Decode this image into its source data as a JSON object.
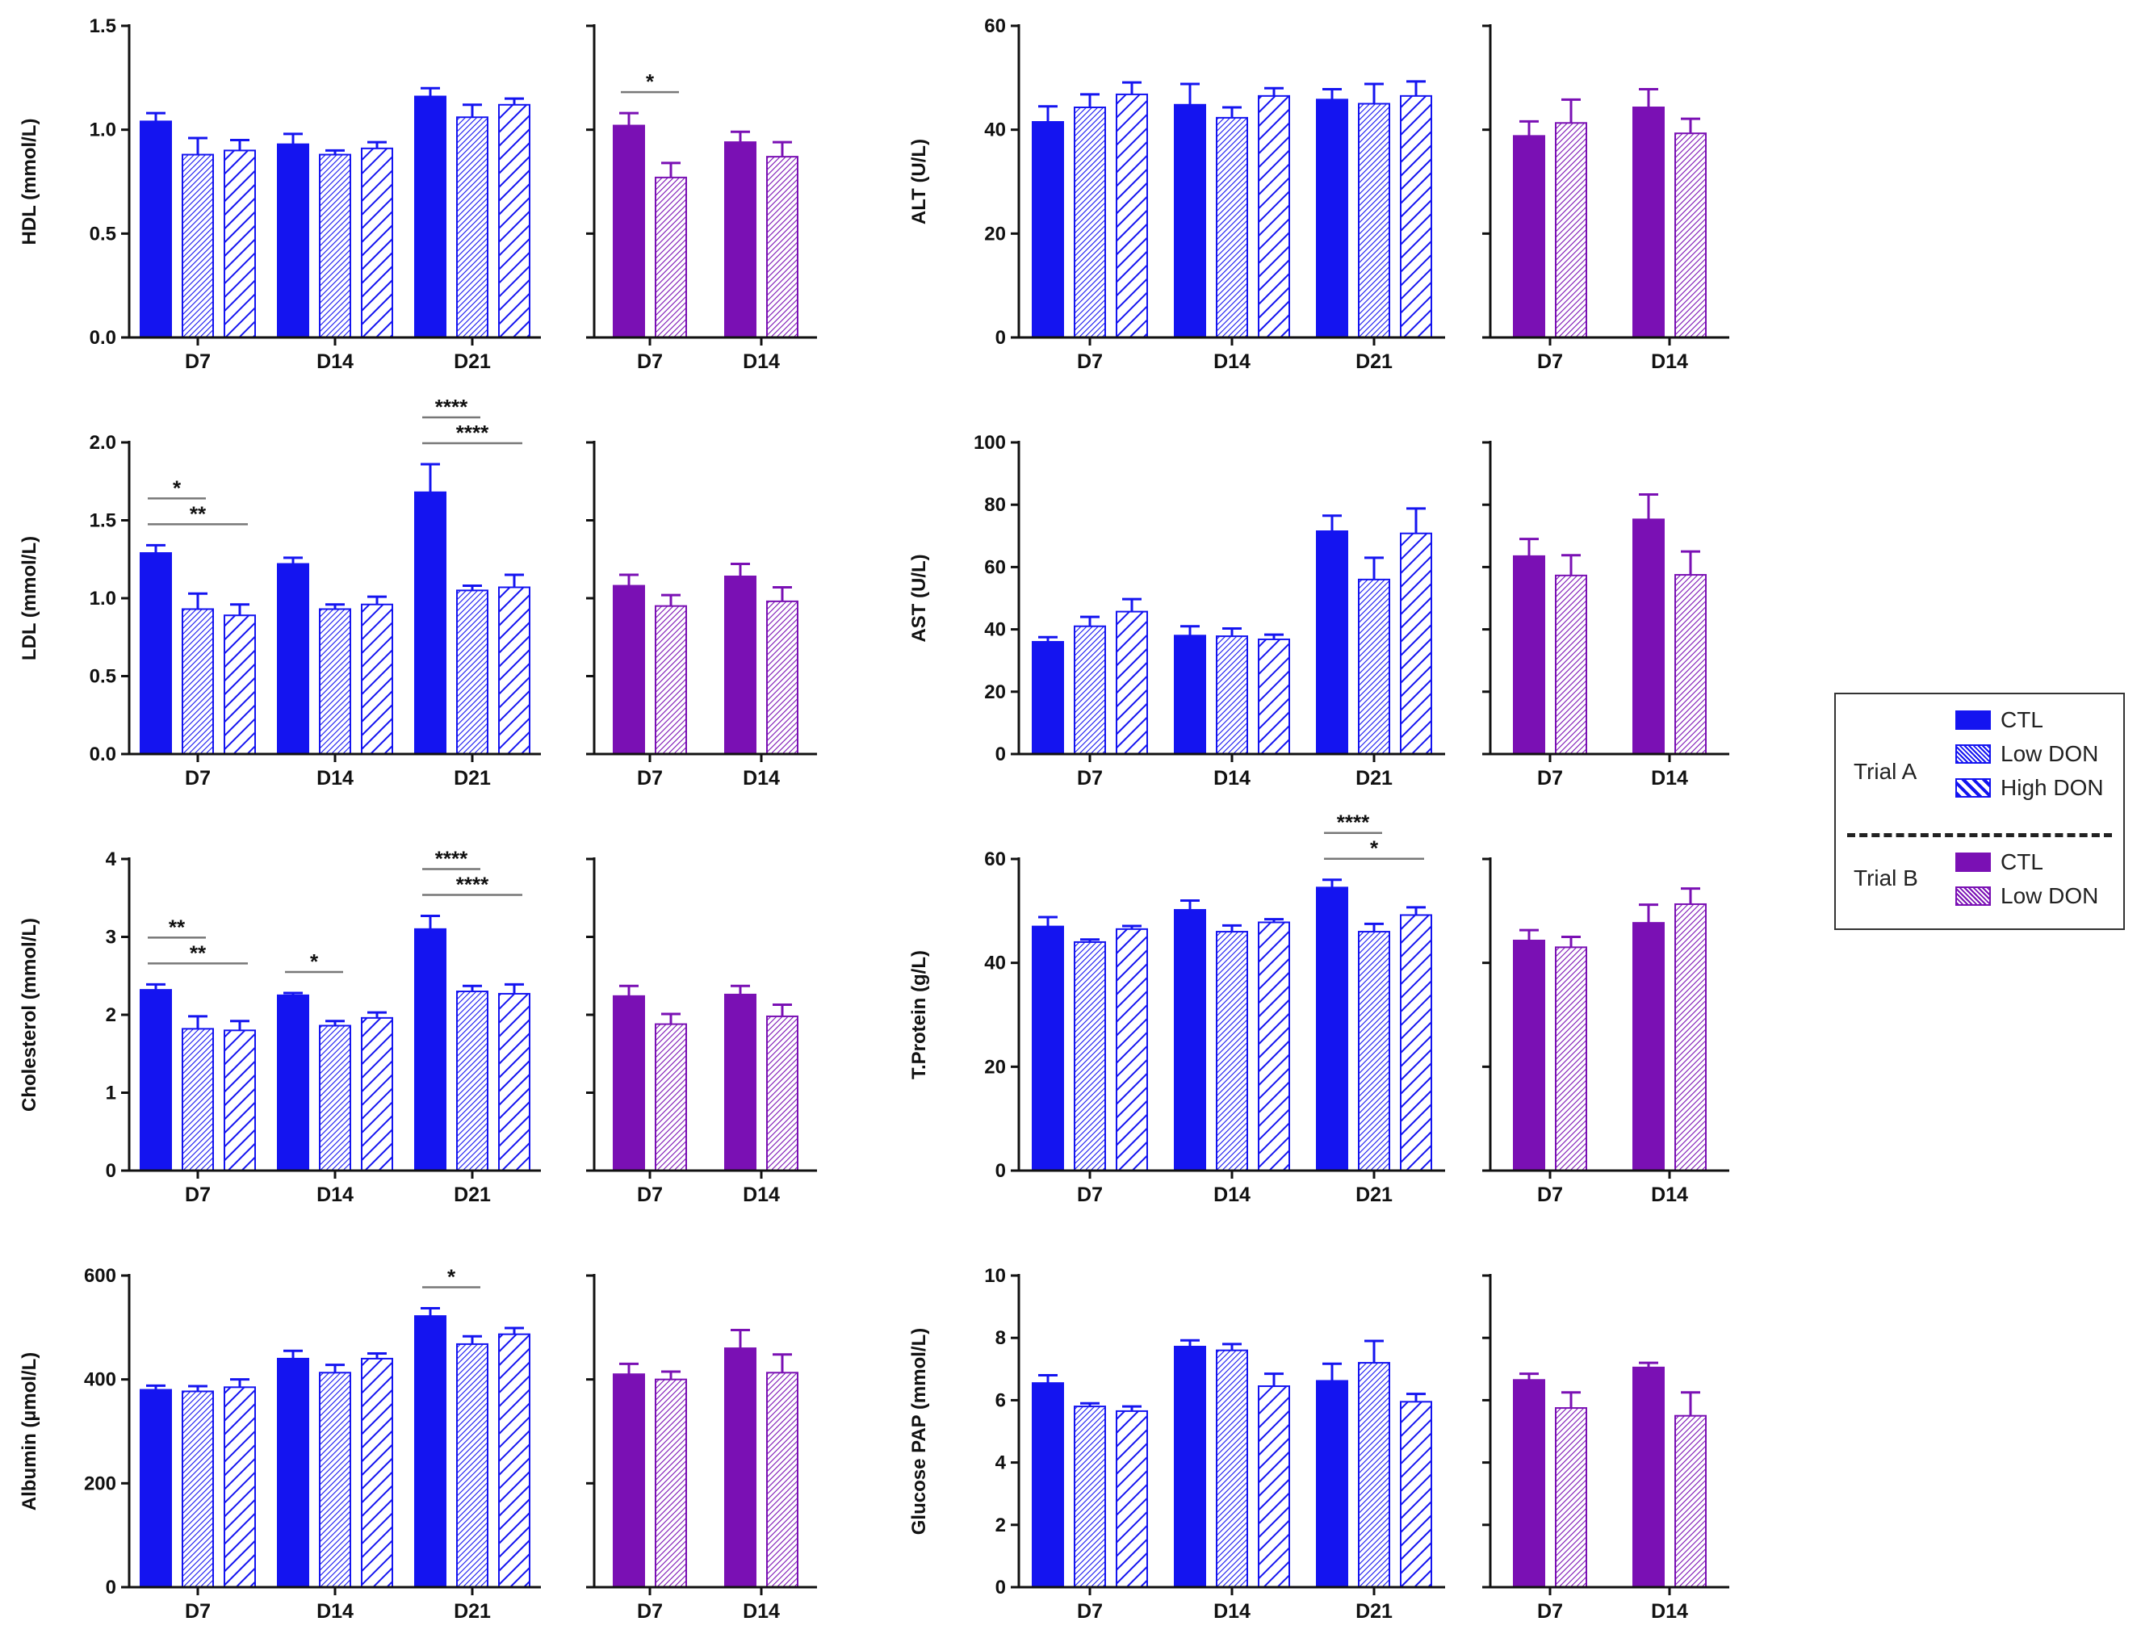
{
  "colors": {
    "trialA": "#1414f0",
    "trialB": "#7a10b4",
    "axis": "#111111",
    "sig": "#777777"
  },
  "legend": {
    "trialA_label": "Trial A",
    "trialB_label": "Trial B",
    "trialA_items": [
      {
        "name": "CTL",
        "pattern": "solid"
      },
      {
        "name": "Low DON",
        "pattern": "dense-hatch"
      },
      {
        "name": "High DON",
        "pattern": "wide-hatch"
      }
    ],
    "trialB_items": [
      {
        "name": "CTL",
        "pattern": "solid"
      },
      {
        "name": "Low DON",
        "pattern": "dense-hatch"
      }
    ]
  },
  "chart_data": [
    {
      "type": "bar",
      "ylabel": "HDL (mmol/L)",
      "ylim": [
        0,
        1.5
      ],
      "yticks": [
        "0.0",
        "0.5",
        "1.0",
        "1.5"
      ],
      "grid": false,
      "trialA": {
        "categories": [
          "D7",
          "D14",
          "D21"
        ],
        "series": [
          {
            "name": "CTL",
            "values": [
              1.04,
              0.93,
              1.16
            ],
            "errors": [
              0.04,
              0.05,
              0.04
            ]
          },
          {
            "name": "Low DON",
            "values": [
              0.88,
              0.88,
              1.06
            ],
            "errors": [
              0.08,
              0.02,
              0.06
            ]
          },
          {
            "name": "High DON",
            "values": [
              0.9,
              0.91,
              1.12
            ],
            "errors": [
              0.05,
              0.03,
              0.03
            ]
          }
        ]
      },
      "trialB": {
        "categories": [
          "D7",
          "D14"
        ],
        "series": [
          {
            "name": "CTL",
            "values": [
              1.02,
              0.94
            ],
            "errors": [
              0.06,
              0.05
            ]
          },
          {
            "name": "Low DON",
            "values": [
              0.77,
              0.87
            ],
            "errors": [
              0.07,
              0.07
            ]
          }
        ]
      },
      "significance": [
        {
          "trial": "B",
          "category": 0,
          "from": 0,
          "to": 1,
          "label": "*",
          "level": 0
        }
      ]
    },
    {
      "type": "bar",
      "ylabel": "ALT (U/L)",
      "ylim": [
        0,
        60
      ],
      "yticks": [
        "0",
        "20",
        "40",
        "60"
      ],
      "grid": false,
      "trialA": {
        "categories": [
          "D7",
          "D14",
          "D21"
        ],
        "series": [
          {
            "name": "CTL",
            "values": [
              41.5,
              44.8,
              45.8
            ],
            "errors": [
              3.0,
              4.0,
              2.0
            ]
          },
          {
            "name": "Low DON",
            "values": [
              44.3,
              42.3,
              45.0
            ],
            "errors": [
              2.5,
              2.0,
              3.8
            ]
          },
          {
            "name": "High DON",
            "values": [
              46.8,
              46.5,
              46.5
            ],
            "errors": [
              2.3,
              1.5,
              2.8
            ]
          }
        ]
      },
      "trialB": {
        "categories": [
          "D7",
          "D14"
        ],
        "series": [
          {
            "name": "CTL",
            "values": [
              38.8,
              44.3
            ],
            "errors": [
              2.8,
              3.5
            ]
          },
          {
            "name": "Low DON",
            "values": [
              41.3,
              39.3
            ],
            "errors": [
              4.5,
              2.8
            ]
          }
        ]
      },
      "significance": []
    },
    {
      "type": "bar",
      "ylabel": "LDL (mmol/L)",
      "ylim": [
        0,
        2.0
      ],
      "yticks": [
        "0.0",
        "0.5",
        "1.0",
        "1.5",
        "2.0"
      ],
      "grid": false,
      "trialA": {
        "categories": [
          "D7",
          "D14",
          "D21"
        ],
        "series": [
          {
            "name": "CTL",
            "values": [
              1.29,
              1.22,
              1.68
            ],
            "errors": [
              0.05,
              0.04,
              0.18
            ]
          },
          {
            "name": "Low DON",
            "values": [
              0.93,
              0.93,
              1.05
            ],
            "errors": [
              0.1,
              0.03,
              0.03
            ]
          },
          {
            "name": "High DON",
            "values": [
              0.89,
              0.96,
              1.07
            ],
            "errors": [
              0.07,
              0.05,
              0.08
            ]
          }
        ]
      },
      "trialB": {
        "categories": [
          "D7",
          "D14"
        ],
        "series": [
          {
            "name": "CTL",
            "values": [
              1.08,
              1.14
            ],
            "errors": [
              0.07,
              0.08
            ]
          },
          {
            "name": "Low DON",
            "values": [
              0.95,
              0.98
            ],
            "errors": [
              0.07,
              0.09
            ]
          }
        ]
      },
      "significance": [
        {
          "trial": "A",
          "category": 0,
          "from": 0,
          "to": 1,
          "label": "*",
          "level": 1
        },
        {
          "trial": "A",
          "category": 0,
          "from": 0,
          "to": 2,
          "label": "**",
          "level": 0
        },
        {
          "trial": "A",
          "category": 2,
          "from": 0,
          "to": 1,
          "label": "****",
          "level": 1
        },
        {
          "trial": "A",
          "category": 2,
          "from": 0,
          "to": 2,
          "label": "****",
          "level": 0
        }
      ]
    },
    {
      "type": "bar",
      "ylabel": "AST (U/L)",
      "ylim": [
        0,
        100
      ],
      "yticks": [
        "0",
        "20",
        "40",
        "60",
        "80",
        "100"
      ],
      "grid": false,
      "trialA": {
        "categories": [
          "D7",
          "D14",
          "D21"
        ],
        "series": [
          {
            "name": "CTL",
            "values": [
              36.0,
              38.0,
              71.5
            ],
            "errors": [
              1.5,
              3.0,
              5.0
            ]
          },
          {
            "name": "Low DON",
            "values": [
              41.0,
              37.8,
              56.0
            ],
            "errors": [
              3.0,
              2.5,
              7.0
            ]
          },
          {
            "name": "High DON",
            "values": [
              45.7,
              36.8,
              70.8
            ],
            "errors": [
              4.0,
              1.5,
              8.0
            ]
          }
        ]
      },
      "trialB": {
        "categories": [
          "D7",
          "D14"
        ],
        "series": [
          {
            "name": "CTL",
            "values": [
              63.5,
              75.3
            ],
            "errors": [
              5.5,
              8.0
            ]
          },
          {
            "name": "Low DON",
            "values": [
              57.3,
              57.5
            ],
            "errors": [
              6.5,
              7.5
            ]
          }
        ]
      },
      "significance": []
    },
    {
      "type": "bar",
      "ylabel": "Cholesterol (mmol/L)",
      "ylim": [
        0,
        4
      ],
      "yticks": [
        "0",
        "1",
        "2",
        "3",
        "4"
      ],
      "grid": false,
      "trialA": {
        "categories": [
          "D7",
          "D14",
          "D21"
        ],
        "series": [
          {
            "name": "CTL",
            "values": [
              2.32,
              2.25,
              3.1
            ],
            "errors": [
              0.07,
              0.03,
              0.17
            ]
          },
          {
            "name": "Low DON",
            "values": [
              1.82,
              1.86,
              2.3
            ],
            "errors": [
              0.16,
              0.06,
              0.07
            ]
          },
          {
            "name": "High DON",
            "values": [
              1.8,
              1.96,
              2.27
            ],
            "errors": [
              0.12,
              0.07,
              0.12
            ]
          }
        ]
      },
      "trialB": {
        "categories": [
          "D7",
          "D14"
        ],
        "series": [
          {
            "name": "CTL",
            "values": [
              2.24,
              2.26
            ],
            "errors": [
              0.13,
              0.11
            ]
          },
          {
            "name": "Low DON",
            "values": [
              1.88,
              1.98
            ],
            "errors": [
              0.13,
              0.15
            ]
          }
        ]
      },
      "significance": [
        {
          "trial": "A",
          "category": 0,
          "from": 0,
          "to": 1,
          "label": "**",
          "level": 1
        },
        {
          "trial": "A",
          "category": 0,
          "from": 0,
          "to": 2,
          "label": "**",
          "level": 0
        },
        {
          "trial": "A",
          "category": 1,
          "from": 0,
          "to": 1,
          "label": "*",
          "level": 0
        },
        {
          "trial": "A",
          "category": 2,
          "from": 0,
          "to": 1,
          "label": "****",
          "level": 1
        },
        {
          "trial": "A",
          "category": 2,
          "from": 0,
          "to": 2,
          "label": "****",
          "level": 0
        }
      ]
    },
    {
      "type": "bar",
      "ylabel": "T.Protein (g/L)",
      "ylim": [
        0,
        60
      ],
      "yticks": [
        "0",
        "20",
        "40",
        "60"
      ],
      "grid": false,
      "trialA": {
        "categories": [
          "D7",
          "D14",
          "D21"
        ],
        "series": [
          {
            "name": "CTL",
            "values": [
              47.0,
              50.2,
              54.5
            ],
            "errors": [
              1.8,
              1.8,
              1.5
            ]
          },
          {
            "name": "Low DON",
            "values": [
              44.0,
              46.0,
              46.0
            ],
            "errors": [
              0.5,
              1.2,
              1.5
            ]
          },
          {
            "name": "High DON",
            "values": [
              46.5,
              47.8,
              49.2
            ],
            "errors": [
              0.6,
              0.6,
              1.5
            ]
          }
        ]
      },
      "trialB": {
        "categories": [
          "D7",
          "D14"
        ],
        "series": [
          {
            "name": "CTL",
            "values": [
              44.3,
              47.7
            ],
            "errors": [
              2.0,
              3.5
            ]
          },
          {
            "name": "Low DON",
            "values": [
              43.0,
              51.3
            ],
            "errors": [
              2.0,
              3.0
            ]
          }
        ]
      },
      "significance": [
        {
          "trial": "A",
          "category": 2,
          "from": 0,
          "to": 1,
          "label": "****",
          "level": 1
        },
        {
          "trial": "A",
          "category": 2,
          "from": 0,
          "to": 2,
          "label": "*",
          "level": 0
        }
      ]
    },
    {
      "type": "bar",
      "ylabel": "Albumin (µmol/L)",
      "ylim": [
        0,
        600
      ],
      "yticks": [
        "0",
        "200",
        "400",
        "600"
      ],
      "grid": false,
      "trialA": {
        "categories": [
          "D7",
          "D14",
          "D21"
        ],
        "series": [
          {
            "name": "CTL",
            "values": [
              380,
              440,
              522
            ],
            "errors": [
              8,
              15,
              15
            ]
          },
          {
            "name": "Low DON",
            "values": [
              377,
              413,
              468
            ],
            "errors": [
              10,
              15,
              15
            ]
          },
          {
            "name": "High DON",
            "values": [
              385,
              440,
              487
            ],
            "errors": [
              15,
              10,
              12
            ]
          }
        ]
      },
      "trialB": {
        "categories": [
          "D7",
          "D14"
        ],
        "series": [
          {
            "name": "CTL",
            "values": [
              410,
              460
            ],
            "errors": [
              20,
              35
            ]
          },
          {
            "name": "Low DON",
            "values": [
              400,
              413
            ],
            "errors": [
              15,
              35
            ]
          }
        ]
      },
      "significance": [
        {
          "trial": "A",
          "category": 2,
          "from": 0,
          "to": 1,
          "label": "*",
          "level": 0
        }
      ]
    },
    {
      "type": "bar",
      "ylabel": "Glucose PAP (mmol/L)",
      "ylim": [
        0,
        10
      ],
      "yticks": [
        "0",
        "2",
        "4",
        "6",
        "8",
        "10"
      ],
      "grid": false,
      "trialA": {
        "categories": [
          "D7",
          "D14",
          "D21"
        ],
        "series": [
          {
            "name": "CTL",
            "values": [
              6.55,
              7.72,
              6.62
            ],
            "errors": [
              0.25,
              0.2,
              0.55
            ]
          },
          {
            "name": "Low DON",
            "values": [
              5.8,
              7.6,
              7.2
            ],
            "errors": [
              0.1,
              0.2,
              0.7
            ]
          },
          {
            "name": "High DON",
            "values": [
              5.65,
              6.45,
              5.95
            ],
            "errors": [
              0.15,
              0.4,
              0.25
            ]
          }
        ]
      },
      "trialB": {
        "categories": [
          "D7",
          "D14"
        ],
        "series": [
          {
            "name": "CTL",
            "values": [
              6.65,
              7.05
            ],
            "errors": [
              0.2,
              0.15
            ]
          },
          {
            "name": "Low DON",
            "values": [
              5.75,
              5.5
            ],
            "errors": [
              0.5,
              0.75
            ]
          }
        ]
      },
      "significance": []
    }
  ]
}
